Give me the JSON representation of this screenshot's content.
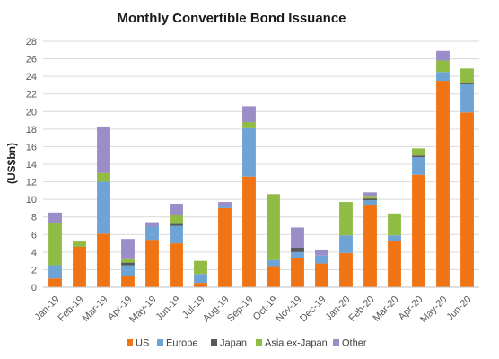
{
  "chart_data": {
    "type": "bar",
    "stacked": true,
    "title": "Monthly Convertible Bond Issuance",
    "xlabel": "",
    "ylabel": "(US$bn)",
    "ylim": [
      0,
      28
    ],
    "yticks": [
      0,
      2,
      4,
      6,
      8,
      10,
      12,
      14,
      16,
      18,
      20,
      22,
      24,
      26,
      28
    ],
    "grid": true,
    "legend_position": "bottom",
    "categories": [
      "Jan-19",
      "Feb-19",
      "Mar-19",
      "Apr-19",
      "May-19",
      "Jun-19",
      "Jul-19",
      "Aug-19",
      "Sep-19",
      "Oct-19",
      "Nov-19",
      "Dec-19",
      "Jan-20",
      "Feb-20",
      "Mar-20",
      "Apr-20",
      "May-20",
      "Jun-20"
    ],
    "series": [
      {
        "name": "US",
        "color": "#f07414",
        "values": [
          1.0,
          4.6,
          6.1,
          1.3,
          5.4,
          5.0,
          0.5,
          9.0,
          12.6,
          2.4,
          3.3,
          2.7,
          3.9,
          9.4,
          5.3,
          12.8,
          23.5,
          19.9
        ]
      },
      {
        "name": "Europe",
        "color": "#6ea3d6",
        "values": [
          1.5,
          0.0,
          5.9,
          1.2,
          1.5,
          2.0,
          1.0,
          0.2,
          5.5,
          0.7,
          0.7,
          0.9,
          2.0,
          0.5,
          0.6,
          2.0,
          1.0,
          3.2
        ]
      },
      {
        "name": "Japan",
        "color": "#595959",
        "values": [
          0.0,
          0.0,
          0.0,
          0.3,
          0.0,
          0.2,
          0.0,
          0.0,
          0.0,
          0.0,
          0.5,
          0.0,
          0.0,
          0.2,
          0.0,
          0.2,
          0.0,
          0.2
        ]
      },
      {
        "name": "Asia ex-Japan",
        "color": "#90bb45",
        "values": [
          4.8,
          0.6,
          1.0,
          0.4,
          0.0,
          1.0,
          1.5,
          0.0,
          0.7,
          7.5,
          0.0,
          0.0,
          3.8,
          0.3,
          2.5,
          0.8,
          1.3,
          1.6
        ]
      },
      {
        "name": "Other",
        "color": "#9b8dc8",
        "values": [
          1.2,
          0.0,
          5.3,
          2.3,
          0.5,
          1.3,
          0.0,
          0.5,
          1.8,
          0.0,
          2.3,
          0.7,
          0.0,
          0.4,
          0.0,
          0.0,
          1.1,
          0.0
        ]
      }
    ]
  }
}
